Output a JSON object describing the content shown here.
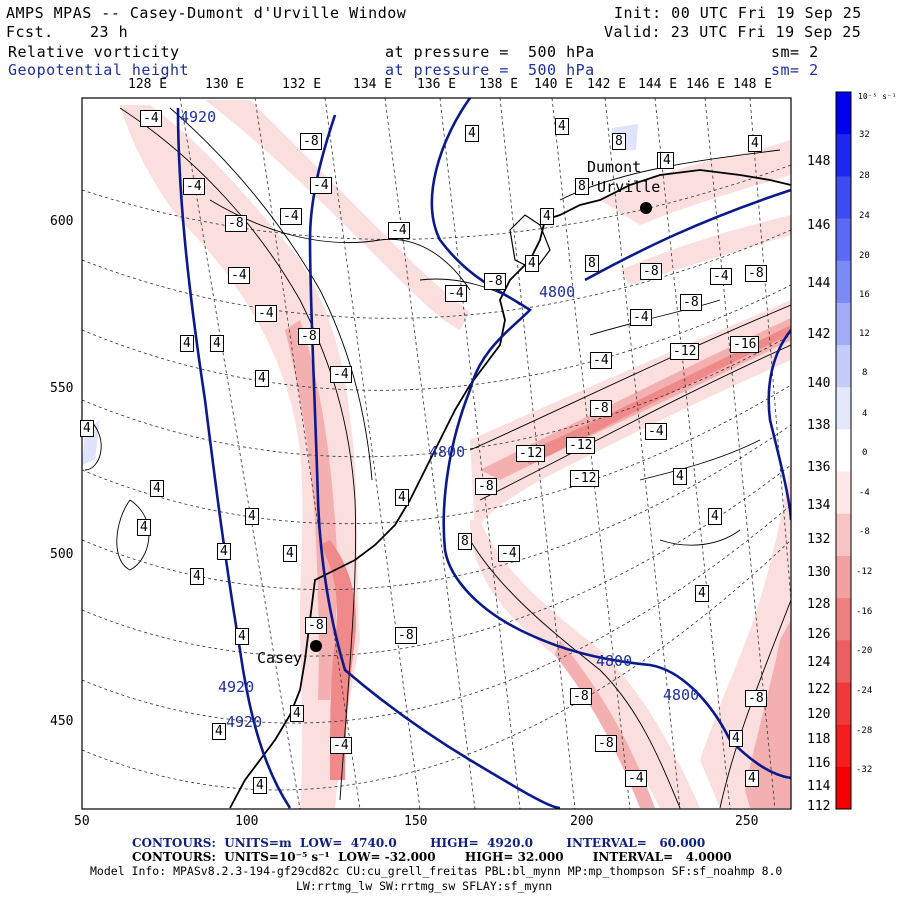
{
  "header": {
    "title": "AMPS MPAS -- Casey-Dumont d'Urville Window",
    "fcst_label": "Fcst.",
    "fcst_value": "23 h",
    "init": "Init: 00 UTC Fri 19 Sep 25",
    "valid": "Valid: 23 UTC Fri 19 Sep 25",
    "field1": "Relative vorticity",
    "field1_level": "at pressure =  500 hPa",
    "field1_sm": "sm= 2",
    "field2": "Geopotential height",
    "field2_level": "at pressure =  500 hPa",
    "field2_sm": "sm= 2"
  },
  "top_lon_labels": [
    "128 E",
    "130 E",
    "132 E",
    "134 E",
    "136 E",
    "138 E",
    "140 E",
    "142 E",
    "144 E",
    "146 E",
    "148 E"
  ],
  "right_lat_labels": [
    "148",
    "146",
    "144",
    "142",
    "140",
    "138",
    "136",
    "134",
    "132",
    "130",
    "128",
    "126",
    "124",
    "122",
    "120",
    "118",
    "116",
    "114",
    "112"
  ],
  "x_ticks": [
    "50",
    "100",
    "150",
    "200",
    "250"
  ],
  "y_ticks": [
    "600",
    "550",
    "500",
    "450"
  ],
  "colorbar": {
    "unit": "10⁻⁵ s⁻¹",
    "labels": [
      "32",
      "28",
      "24",
      "20",
      "16",
      "12",
      "8",
      "4",
      "0",
      "-4",
      "-8",
      "-12",
      "-16",
      "-20",
      "-24",
      "-28",
      "-32"
    ],
    "colors": [
      "#0000ee",
      "#1c28f0",
      "#3c4cf2",
      "#5a6af4",
      "#7c8af6",
      "#a2acf8",
      "#c4ccfa",
      "#e4e8fc",
      "#ffffff",
      "#fde8e8",
      "#f8c4c4",
      "#f2a0a0",
      "#ee8080",
      "#ea5f5f",
      "#f03a3a",
      "#f41d1d",
      "#f50000"
    ]
  },
  "places": [
    {
      "name": "Dumont",
      "name2": "d'Urville"
    },
    {
      "name": "Casey"
    }
  ],
  "height_labels": [
    "4920",
    "4920",
    "4920",
    "4800",
    "4800",
    "4800",
    "4800"
  ],
  "vort_labels": [
    "-4",
    "-8",
    "-4",
    "-4",
    "-8",
    "-4",
    "-4",
    "-4",
    "-4",
    "-8",
    "-4",
    "-4",
    "-8",
    "-4",
    "4",
    "4",
    "4",
    "8",
    "4",
    "4",
    "8",
    "-8",
    "-4",
    "-8",
    "-8",
    "-4",
    "-12",
    "-12",
    "-12",
    "-16",
    "-12",
    "-8",
    "-4",
    "-8",
    "-4",
    "-8",
    "-8",
    "-4",
    "-8",
    "-8",
    "-4",
    "-8",
    "4",
    "4",
    "4",
    "4",
    "4",
    "4",
    "4",
    "4",
    "4",
    "4",
    "4",
    "4",
    "4",
    "4",
    "4",
    "8",
    "4",
    "4",
    "4",
    "8",
    "4",
    "4",
    "4",
    "4",
    "4"
  ],
  "footer": {
    "line1": "CONTOURS:  UNITS=m  LOW=  4740.0        HIGH=  4920.0        INTERVAL=   60.000",
    "line2": "CONTOURS:  UNITS=10⁻⁵ s⁻¹  LOW= -32.000       HIGH= 32.000       INTERVAL=   4.0000",
    "line3": "Model Info: MPASv8.2.3-194-gf29cd82c CU:cu_grell_freitas PBL:bl_mynn MP:mp_thompson SF:sf_noahmp 8.0",
    "line4": "LW:rrtmg_lw SW:rrtmg_sw SFLAY:sf_mynn"
  }
}
